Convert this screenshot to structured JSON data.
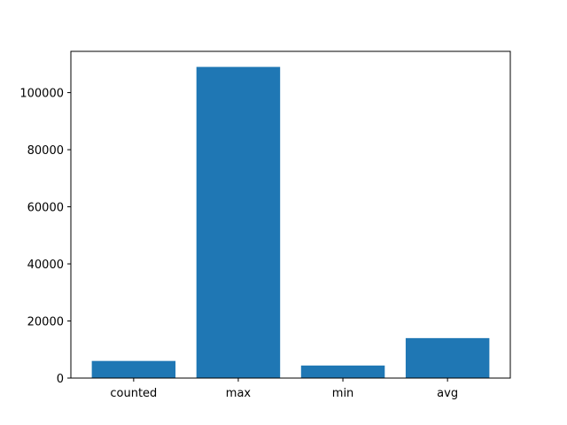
{
  "chart_data": {
    "type": "bar",
    "categories": [
      "counted",
      "max",
      "min",
      "avg"
    ],
    "values": [
      6000,
      109000,
      4400,
      14000
    ],
    "title": "",
    "xlabel": "",
    "ylabel": "",
    "ylim": [
      0,
      114450
    ],
    "yticks": [
      0,
      20000,
      40000,
      60000,
      80000,
      100000
    ],
    "bar_color": "#1f77b4",
    "grid": false,
    "legend": false
  }
}
